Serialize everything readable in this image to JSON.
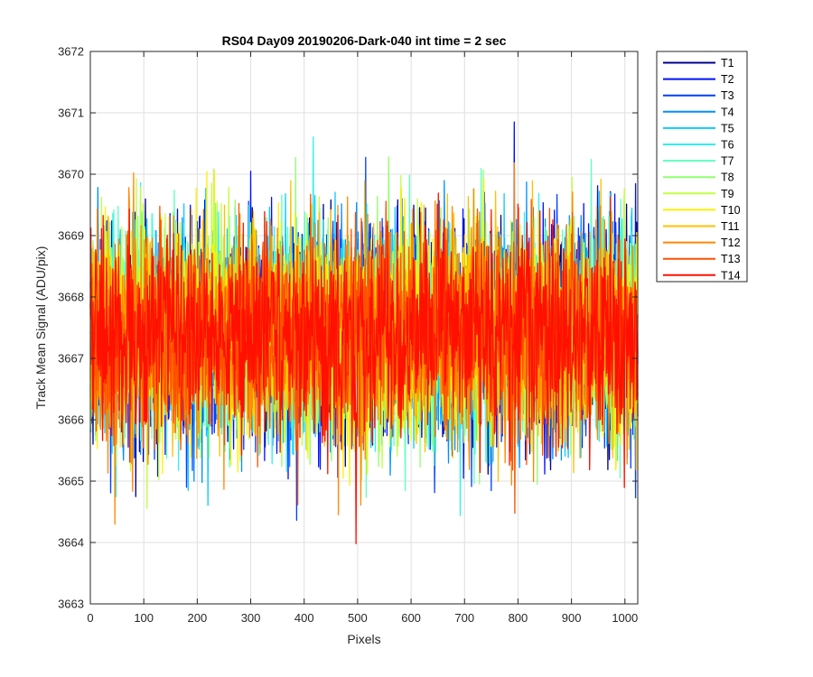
{
  "chart_data": {
    "type": "line",
    "title": "RS04 Day09 20190206-Dark-040 int time = 2 sec",
    "xlabel": "Pixels",
    "ylabel": "Track Mean Signal (ADU/pix)",
    "xlim": [
      0,
      1024
    ],
    "ylim": [
      3663,
      3672
    ],
    "xticks": [
      0,
      100,
      200,
      300,
      400,
      500,
      600,
      700,
      800,
      900,
      1000
    ],
    "yticks": [
      3663,
      3664,
      3665,
      3666,
      3667,
      3668,
      3669,
      3670,
      3671,
      3672
    ],
    "grid": true,
    "legend_position": "outside-top-right",
    "series_mean": 3667.4,
    "series_std": 0.85,
    "series": [
      {
        "name": "T1",
        "color": "#00008F"
      },
      {
        "name": "T2",
        "color": "#0010FF"
      },
      {
        "name": "T3",
        "color": "#0040FF"
      },
      {
        "name": "T4",
        "color": "#0090FF"
      },
      {
        "name": "T5",
        "color": "#10C8FF"
      },
      {
        "name": "T6",
        "color": "#30F0F0"
      },
      {
        "name": "T7",
        "color": "#60FFC0"
      },
      {
        "name": "T8",
        "color": "#90FF70"
      },
      {
        "name": "T9",
        "color": "#C0FF40"
      },
      {
        "name": "T10",
        "color": "#FFF000"
      },
      {
        "name": "T11",
        "color": "#FFC000"
      },
      {
        "name": "T12",
        "color": "#FF8800"
      },
      {
        "name": "T13",
        "color": "#FF5000"
      },
      {
        "name": "T14",
        "color": "#FF1000"
      }
    ]
  }
}
